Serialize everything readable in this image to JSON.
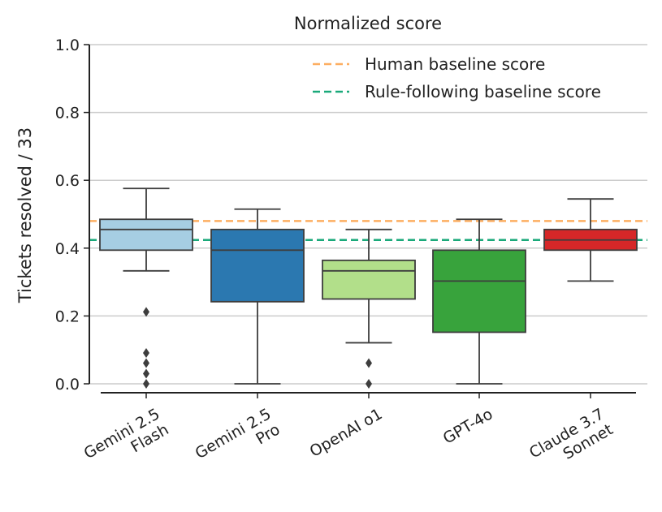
{
  "chart_data": {
    "type": "box",
    "title": "Normalized score",
    "ylabel": "Tickets resolved / 33",
    "xlabel": "",
    "ylim": [
      0.0,
      1.0
    ],
    "yticks": [
      "0.0",
      "0.2",
      "0.4",
      "0.6",
      "0.8",
      "1.0"
    ],
    "grid": "horizontal",
    "legend_position": "top-right",
    "categories": [
      {
        "name": "Gemini 2.5 Flash",
        "label_lines": [
          "Gemini 2.5",
          "Flash"
        ]
      },
      {
        "name": "Gemini 2.5 Pro",
        "label_lines": [
          "Gemini 2.5",
          "Pro"
        ]
      },
      {
        "name": "OpenAI o1",
        "label_lines": [
          "OpenAI o1"
        ]
      },
      {
        "name": "GPT-4o",
        "label_lines": [
          "GPT-4o"
        ]
      },
      {
        "name": "Claude 3.7 Sonnet",
        "label_lines": [
          "Claude 3.7",
          "Sonnet"
        ]
      }
    ],
    "boxes": [
      {
        "whisker_low": 0.333,
        "q1": 0.394,
        "median": 0.455,
        "q3": 0.485,
        "whisker_high": 0.576,
        "outliers": [
          0.212,
          0.091,
          0.061,
          0.03,
          0.0
        ],
        "color": "#a6cee3"
      },
      {
        "whisker_low": 0.0,
        "q1": 0.242,
        "median": 0.394,
        "q3": 0.455,
        "whisker_high": 0.515,
        "outliers": [],
        "color": "#2b78b0"
      },
      {
        "whisker_low": 0.121,
        "q1": 0.25,
        "median": 0.333,
        "q3": 0.364,
        "whisker_high": 0.455,
        "outliers": [
          0.061,
          0.0
        ],
        "color": "#b2df8a"
      },
      {
        "whisker_low": 0.0,
        "q1": 0.152,
        "median": 0.303,
        "q3": 0.394,
        "whisker_high": 0.485,
        "outliers": [],
        "color": "#38a33c"
      },
      {
        "whisker_low": 0.303,
        "q1": 0.394,
        "median": 0.424,
        "q3": 0.455,
        "whisker_high": 0.545,
        "outliers": [],
        "color": "#d62728"
      }
    ],
    "reference_lines": [
      {
        "name": "Human baseline score",
        "value": 0.48,
        "color": "#fdae61",
        "style": "dashed"
      },
      {
        "name": "Rule-following baseline score",
        "value": 0.424,
        "color": "#1aa97a",
        "style": "dashed"
      }
    ]
  }
}
